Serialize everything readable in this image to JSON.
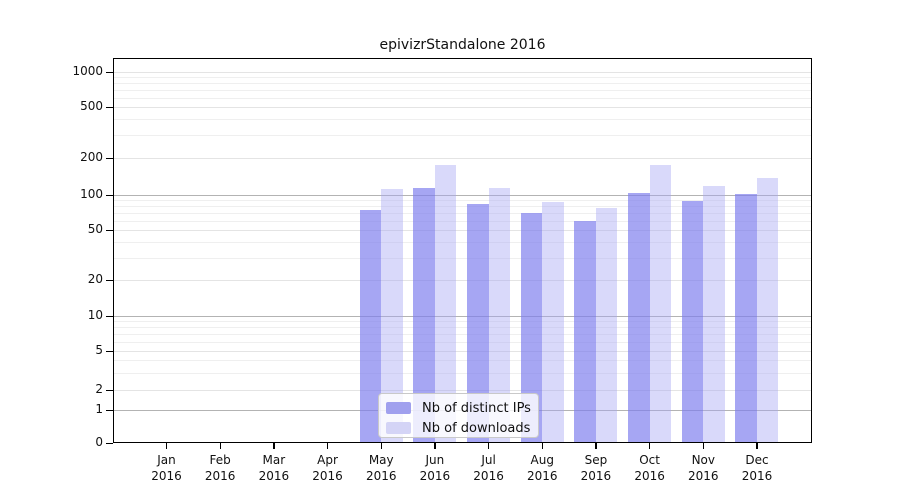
{
  "figure": {
    "title": "epivizrStandalone 2016"
  },
  "chart_data": {
    "type": "bar",
    "title": "epivizrStandalone 2016",
    "year": "2016",
    "months": [
      "Jan",
      "Feb",
      "Mar",
      "Apr",
      "May",
      "Jun",
      "Jul",
      "Aug",
      "Sep",
      "Oct",
      "Nov",
      "Dec"
    ],
    "series": [
      {
        "name": "Nb of distinct IPs",
        "legend_color": "#a0a0ee",
        "fill": "rgba(124,124,238,0.68)",
        "values": [
          0,
          0,
          0,
          0,
          74,
          115,
          84,
          70,
          60,
          103,
          88,
          101
        ]
      },
      {
        "name": "Nb of downloads",
        "legend_color": "#d4d4f6",
        "fill": "rgba(164,164,242,0.42)",
        "values": [
          0,
          0,
          0,
          0,
          111,
          174,
          114,
          87,
          77,
          176,
          119,
          137
        ]
      }
    ],
    "y_axis": {
      "scale": "symlog",
      "ticks": [
        1000,
        500,
        200,
        100,
        50,
        20,
        10,
        5,
        2,
        1,
        0
      ],
      "range": [
        0,
        1100
      ]
    },
    "grid": {
      "major": true,
      "minor": true
    },
    "legend": {
      "position": "bottom-center"
    }
  }
}
